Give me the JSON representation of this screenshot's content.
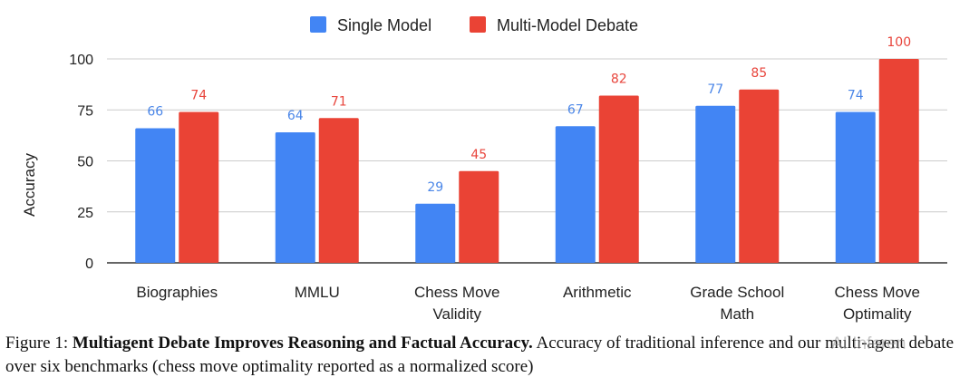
{
  "chart_data": {
    "type": "bar",
    "categories": [
      "Biographies",
      "MMLU",
      "Chess Move Validity",
      "Arithmetic",
      "Grade School Math",
      "Chess Move Optimality"
    ],
    "category_lines": [
      [
        "Biographies"
      ],
      [
        "MMLU"
      ],
      [
        "Chess Move",
        "Validity"
      ],
      [
        "Arithmetic"
      ],
      [
        "Grade School",
        "Math"
      ],
      [
        "Chess Move",
        "Optimality"
      ]
    ],
    "series": [
      {
        "name": "Single Model",
        "values": [
          66,
          64,
          29,
          67,
          77,
          74
        ],
        "color": "#4285f4",
        "label_color": "#4a86e8"
      },
      {
        "name": "Multi-Model Debate",
        "values": [
          74,
          71,
          45,
          82,
          85,
          100
        ],
        "color": "#ea4335",
        "label_color": "#e8453c"
      }
    ],
    "ylabel": "Accuracy",
    "ylim": [
      0,
      100
    ],
    "yticks": [
      0,
      25,
      50,
      75,
      100
    ],
    "grid": true,
    "legend": "top-center"
  },
  "caption": {
    "prefix": "Figure 1: ",
    "bold": "Multiagent Debate Improves Reasoning and Factual Accuracy.",
    "rest": " Accuracy of traditional inference and our multi-agent debate over six benchmarks (chess move optimality reported as a normalized score)"
  },
  "watermark": "AI Inferen"
}
